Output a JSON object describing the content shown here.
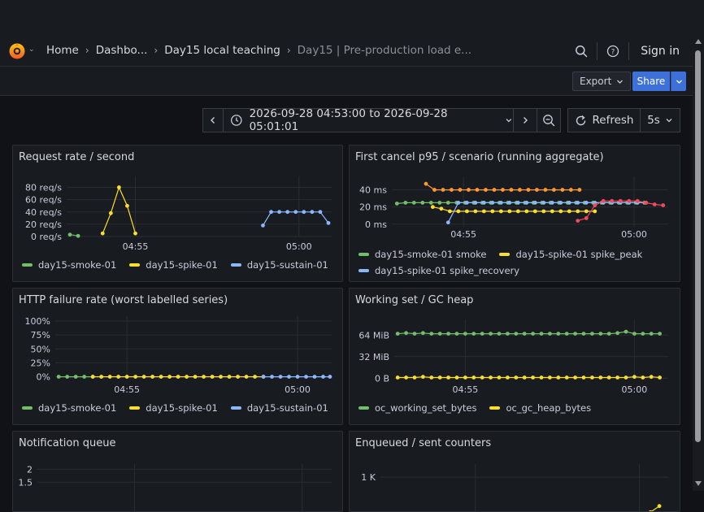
{
  "header": {
    "breadcrumbs": [
      {
        "label": "Home"
      },
      {
        "label": "Dashbo..."
      },
      {
        "label": "Day15 local teaching"
      },
      {
        "label": "Day15 | Pre-production load e..."
      }
    ],
    "sign_in": "Sign in"
  },
  "toolbar": {
    "export_label": "Export",
    "share_label": "Share"
  },
  "timepicker": {
    "range": "2026-09-28 04:53:00 to 2026-09-28 05:01:01",
    "refresh_label": "Refresh",
    "interval": "5s"
  },
  "colors": {
    "green": "#73bf69",
    "yellow": "#fade2a",
    "blue": "#8ab8ff",
    "orange": "#ff9830",
    "red": "#f2495c"
  },
  "panels": [
    {
      "id": "p1",
      "title": "Request rate / second",
      "chart_data": {
        "type": "line",
        "y_ticks": [
          "80 req/s",
          "60 req/s",
          "40 req/s",
          "20 req/s",
          "0 req/s"
        ],
        "y_tick_values": [
          80,
          60,
          40,
          20,
          0
        ],
        "ylim": [
          0,
          90
        ],
        "x_ticks": [
          "04:55",
          "05:00"
        ],
        "x_tick_values": [
          2.1,
          7.1
        ],
        "xlim": [
          0,
          8.1
        ],
        "series": [
          {
            "name": "day15-smoke-01",
            "color": "#73bf69",
            "x": [
              0.1,
              0.35
            ],
            "y": [
              3,
              1
            ]
          },
          {
            "name": "day15-spike-01",
            "color": "#fade2a",
            "x": [
              1.1,
              1.35,
              1.6,
              1.85,
              2.1
            ],
            "y": [
              5,
              38,
              80,
              50,
              5
            ]
          },
          {
            "name": "day15-sustain-01",
            "color": "#8ab8ff",
            "x": [
              6.0,
              6.25,
              6.5,
              6.75,
              7.0,
              7.25,
              7.5,
              7.75,
              8.0
            ],
            "y": [
              18,
              40,
              40,
              40,
              40,
              40,
              40,
              40,
              22
            ]
          }
        ]
      }
    },
    {
      "id": "p2",
      "title": "First cancel p95 / scenario (running aggregate)",
      "chart_data": {
        "type": "line",
        "y_ticks": [
          "40 ms",
          "20 ms",
          "0 ms"
        ],
        "y_tick_values": [
          40,
          20,
          0
        ],
        "ylim": [
          -3,
          50
        ],
        "x_ticks": [
          "04:55",
          "05:00"
        ],
        "x_tick_values": [
          2.1,
          7.1
        ],
        "xlim": [
          0,
          8.1
        ],
        "series": [
          {
            "name": "day15-smoke-01 smoke",
            "color": "#73bf69",
            "x": [
              0.15,
              0.4,
              0.65,
              0.9,
              1.15,
              1.4,
              1.65,
              1.9,
              2.15,
              2.4,
              2.65,
              2.9,
              3.15,
              3.4,
              3.65,
              3.9,
              4.15,
              4.4,
              4.65,
              4.9,
              5.15,
              5.4,
              5.65,
              5.9,
              6.15,
              6.4,
              6.65,
              6.9,
              7.15,
              7.4
            ],
            "y": [
              24,
              25,
              25,
              25,
              25,
              25,
              25,
              25,
              25,
              25,
              25,
              25,
              25,
              25,
              25,
              25,
              25,
              25,
              25,
              25,
              25,
              25,
              25,
              25,
              25,
              25,
              25,
              25,
              25,
              25
            ]
          },
          {
            "name": "day15-spike-01 spike_peak",
            "color": "#fade2a",
            "x": [
              1.2,
              1.45,
              1.7,
              1.95,
              2.2,
              2.45,
              2.7,
              2.95,
              3.2,
              3.45,
              3.7,
              3.95,
              4.2,
              4.45,
              4.7,
              4.95,
              5.2,
              5.45,
              5.7,
              5.95
            ],
            "y": [
              20,
              18,
              15,
              15,
              15,
              15,
              15,
              15,
              15,
              15,
              15,
              15,
              15,
              15,
              15,
              15,
              15,
              15,
              15,
              15
            ]
          },
          {
            "name": "day15-spike-01 spike_recovery",
            "color": "#8ab8ff",
            "x": [
              1.65,
              1.95,
              2.2,
              2.45,
              2.7,
              2.95,
              3.2,
              3.45,
              3.7,
              3.95,
              4.2,
              4.45,
              4.7,
              4.95,
              5.2,
              5.45,
              5.7,
              5.95,
              6.2,
              6.45,
              6.7,
              6.95,
              7.2,
              7.45
            ],
            "y": [
              2,
              25,
              25,
              25,
              25,
              25,
              25,
              25,
              25,
              25,
              25,
              25,
              25,
              25,
              25,
              25,
              25,
              25,
              25,
              25,
              25,
              25,
              25,
              25
            ]
          },
          {
            "color": "#ff9830",
            "x": [
              1.0,
              1.25,
              1.5,
              1.75,
              2.0,
              2.25,
              2.5,
              2.75,
              3.0,
              3.25,
              3.5,
              3.75,
              4.0,
              4.25,
              4.5,
              4.75,
              5.0,
              5.25,
              5.5
            ],
            "y": [
              47,
              40,
              40,
              40,
              40,
              40,
              40,
              40,
              40,
              40,
              40,
              40,
              40,
              40,
              40,
              40,
              40,
              40,
              40
            ]
          },
          {
            "color": "#f2495c",
            "x": [
              5.45,
              5.7,
              5.95,
              6.2,
              6.45,
              6.7,
              6.95,
              7.2,
              7.45,
              7.7,
              7.95
            ],
            "y": [
              4,
              7,
              22,
              27,
              27,
              27,
              27,
              27,
              25,
              23,
              22
            ]
          }
        ]
      }
    },
    {
      "id": "p3",
      "title": "HTTP failure rate (worst labelled series)",
      "chart_data": {
        "type": "line",
        "y_ticks": [
          "100%",
          "75%",
          "50%",
          "25%",
          "0%"
        ],
        "y_tick_values": [
          100,
          75,
          50,
          25,
          0
        ],
        "ylim": [
          -5,
          100
        ],
        "x_ticks": [
          "04:55",
          "05:00"
        ],
        "x_tick_values": [
          2.1,
          7.1
        ],
        "xlim": [
          0,
          8.1
        ],
        "series": [
          {
            "name": "day15-smoke-01",
            "color": "#73bf69",
            "x": [
              0.1,
              0.35,
              0.6,
              0.85,
              1.1
            ],
            "y": [
              0,
              0,
              0,
              0,
              0
            ]
          },
          {
            "name": "day15-spike-01",
            "color": "#fade2a",
            "x": [
              1.1,
              1.35,
              1.6,
              1.85,
              2.1,
              2.35,
              2.6,
              2.85,
              3.1,
              3.35,
              3.6,
              3.85,
              4.1,
              4.35,
              4.6,
              4.85,
              5.1,
              5.35,
              5.6,
              5.85,
              6.1
            ],
            "y": [
              0,
              0,
              0,
              0,
              0,
              0,
              0,
              0,
              0,
              0,
              0,
              0,
              0,
              0,
              0,
              0,
              0,
              0,
              0,
              0,
              0
            ]
          },
          {
            "name": "day15-sustain-01",
            "color": "#8ab8ff",
            "x": [
              6.1,
              6.35,
              6.6,
              6.85,
              7.1,
              7.35,
              7.6,
              7.85,
              8.05
            ],
            "y": [
              0,
              0,
              0,
              0,
              0,
              0,
              0,
              0,
              0
            ]
          }
        ]
      }
    },
    {
      "id": "p4",
      "title": "Working set / GC heap",
      "chart_data": {
        "type": "line",
        "y_ticks": [
          "64 MiB",
          "32 MiB",
          "0 B"
        ],
        "y_tick_values": [
          64,
          32,
          0
        ],
        "ylim": [
          -2,
          80
        ],
        "x_ticks": [
          "04:55",
          "05:00"
        ],
        "x_tick_values": [
          2.1,
          7.1
        ],
        "xlim": [
          0,
          8.1
        ],
        "series": [
          {
            "name": "oc_working_set_bytes",
            "color": "#73bf69",
            "x": [
              0.1,
              0.35,
              0.6,
              0.85,
              1.1,
              1.35,
              1.6,
              1.85,
              2.1,
              2.35,
              2.6,
              2.85,
              3.1,
              3.35,
              3.6,
              3.85,
              4.1,
              4.35,
              4.6,
              4.85,
              5.1,
              5.35,
              5.6,
              5.85,
              6.1,
              6.35,
              6.6,
              6.85,
              7.1,
              7.35,
              7.6,
              7.85
            ],
            "y": [
              66,
              67,
              66,
              67,
              66,
              66,
              66,
              66,
              66,
              66,
              66,
              66,
              66,
              66,
              66,
              66,
              66,
              66,
              66,
              66,
              66,
              66,
              66,
              66,
              66,
              66,
              67,
              69,
              66,
              66,
              66,
              66
            ]
          },
          {
            "name": "oc_gc_heap_bytes",
            "color": "#fade2a",
            "x": [
              0.1,
              0.35,
              0.6,
              0.85,
              1.1,
              1.35,
              1.6,
              1.85,
              2.1,
              2.35,
              2.6,
              2.85,
              3.1,
              3.35,
              3.6,
              3.85,
              4.1,
              4.35,
              4.6,
              4.85,
              5.1,
              5.35,
              5.6,
              5.85,
              6.1,
              6.35,
              6.6,
              6.85,
              7.1,
              7.35,
              7.6,
              7.85
            ],
            "y": [
              1,
              1,
              1,
              2,
              1,
              1,
              1,
              1,
              1,
              1,
              1,
              1,
              1,
              1,
              1,
              1,
              1,
              1,
              1,
              1,
              1,
              1,
              1,
              1,
              1,
              1,
              1,
              1,
              2,
              1,
              2,
              1
            ]
          }
        ]
      }
    },
    {
      "id": "p5",
      "title": "Notification queue",
      "chart_data": {
        "type": "line",
        "y_ticks": [
          "2",
          "1.5"
        ],
        "y_tick_values": [
          2,
          1.5
        ],
        "ylim": [
          0,
          2.2
        ],
        "x_ticks": [],
        "x_tick_values": [],
        "xlim": [
          0,
          8.1
        ],
        "series": []
      }
    },
    {
      "id": "p6",
      "title": "Enqueued / sent counters",
      "chart_data": {
        "type": "line",
        "y_ticks": [
          "1 K"
        ],
        "y_tick_values": [
          1000
        ],
        "ylim": [
          0,
          1300
        ],
        "x_ticks": [],
        "x_tick_values": [],
        "xlim": [
          0,
          8.1
        ],
        "series": [
          {
            "color": "#fade2a",
            "x": [
              0.5,
              0.75,
              1.0,
              1.25,
              1.5,
              1.75,
              2.0,
              2.25,
              2.5,
              2.75,
              3.0,
              3.25,
              3.5,
              3.75,
              4.0,
              4.25,
              4.5,
              4.75,
              5.0,
              7.1,
              7.35,
              7.6,
              7.85
            ],
            "y": [
              0,
              0,
              0,
              0,
              0,
              0,
              0,
              0,
              0,
              0,
              0,
              0,
              0,
              0,
              0,
              0,
              0,
              0,
              0,
              0,
              80,
              200,
              340
            ]
          }
        ]
      }
    }
  ]
}
